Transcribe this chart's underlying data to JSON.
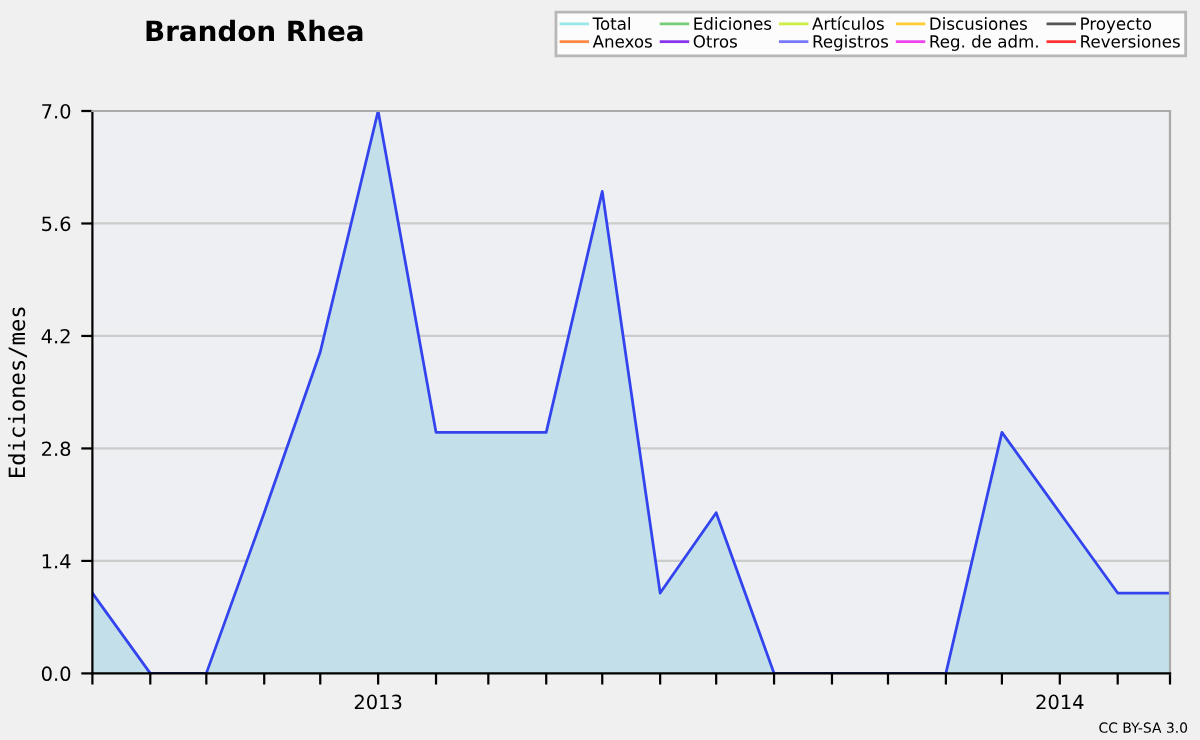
{
  "chart_data": {
    "type": "area",
    "title": "Brandon Rhea",
    "ylabel": "Ediciones/mes",
    "x": [
      "2012-08",
      "2012-09",
      "2012-10",
      "2012-11",
      "2012-12",
      "2013-01",
      "2013-02",
      "2013-03",
      "2013-04",
      "2013-05",
      "2013-06",
      "2013-07",
      "2013-08",
      "2013-09",
      "2013-10",
      "2013-11",
      "2013-12",
      "2014-01",
      "2014-02",
      "2014-03"
    ],
    "series": [
      {
        "color": "#3344ee",
        "values": [
          1,
          0,
          0,
          2,
          4,
          7,
          3,
          3,
          3,
          6,
          1,
          2,
          0,
          0,
          0,
          0,
          3,
          2,
          1,
          1
        ]
      },
      {
        "name": "Total",
        "color": "#99e6e6",
        "values": [
          null,
          null,
          null,
          null,
          null,
          null,
          null,
          null,
          null,
          null,
          null,
          null,
          null,
          null,
          null,
          null,
          null,
          null,
          null,
          null
        ]
      },
      {
        "name": "Ediciones",
        "color": "#77cc77",
        "values": [
          null,
          null,
          null,
          null,
          null,
          null,
          null,
          null,
          null,
          null,
          null,
          null,
          null,
          null,
          null,
          null,
          null,
          null,
          null,
          null
        ]
      },
      {
        "name": "Artículos",
        "color": "#ccee44",
        "values": [
          null,
          null,
          null,
          null,
          null,
          null,
          null,
          null,
          null,
          null,
          null,
          null,
          null,
          null,
          null,
          null,
          null,
          null,
          null,
          null
        ]
      },
      {
        "name": "Discusiones",
        "color": "#ffcc33",
        "values": [
          null,
          null,
          null,
          null,
          null,
          null,
          null,
          null,
          null,
          null,
          null,
          null,
          null,
          null,
          null,
          null,
          null,
          null,
          null,
          null
        ]
      },
      {
        "name": "Proyecto",
        "color": "#555555",
        "values": [
          null,
          null,
          null,
          null,
          null,
          null,
          null,
          null,
          null,
          null,
          null,
          null,
          null,
          null,
          null,
          null,
          null,
          null,
          null,
          null
        ]
      },
      {
        "name": "Anexos",
        "color": "#ff8844",
        "values": [
          null,
          null,
          null,
          null,
          null,
          null,
          null,
          null,
          null,
          null,
          null,
          null,
          null,
          null,
          null,
          null,
          null,
          null,
          null,
          null
        ]
      },
      {
        "name": "Otros",
        "color": "#8833ee",
        "values": [
          null,
          null,
          null,
          null,
          null,
          null,
          null,
          null,
          null,
          null,
          null,
          null,
          null,
          null,
          null,
          null,
          null,
          null,
          null,
          null
        ]
      },
      {
        "name": "Registros",
        "color": "#7777ff",
        "values": [
          null,
          null,
          null,
          null,
          null,
          null,
          null,
          null,
          null,
          null,
          null,
          null,
          null,
          null,
          null,
          null,
          null,
          null,
          null,
          null
        ]
      },
      {
        "name": "Reg. de adm.",
        "color": "#ee44ee",
        "values": [
          null,
          null,
          null,
          null,
          null,
          null,
          null,
          null,
          null,
          null,
          null,
          null,
          null,
          null,
          null,
          null,
          null,
          null,
          null,
          null
        ]
      },
      {
        "name": "Reversiones",
        "color": "#ff3333",
        "values": [
          null,
          null,
          null,
          null,
          null,
          null,
          null,
          null,
          null,
          null,
          null,
          null,
          null,
          null,
          null,
          null,
          null,
          null,
          null,
          null
        ]
      }
    ],
    "xlim": [
      "2012-08",
      "2014-03"
    ],
    "xticks": [
      {
        "value": "2012-08",
        "label": null
      },
      {
        "value": "2012-09",
        "label": null
      },
      {
        "value": "2012-10",
        "label": null
      },
      {
        "value": "2012-11",
        "label": null
      },
      {
        "value": "2012-12",
        "label": null
      },
      {
        "value": "2013-01",
        "label": "2013"
      },
      {
        "value": "2013-02",
        "label": null
      },
      {
        "value": "2013-03",
        "label": null
      },
      {
        "value": "2013-04",
        "label": null
      },
      {
        "value": "2013-05",
        "label": null
      },
      {
        "value": "2013-06",
        "label": null
      },
      {
        "value": "2013-07",
        "label": null
      },
      {
        "value": "2013-08",
        "label": null
      },
      {
        "value": "2013-09",
        "label": null
      },
      {
        "value": "2013-10",
        "label": null
      },
      {
        "value": "2013-11",
        "label": null
      },
      {
        "value": "2013-12",
        "label": null
      },
      {
        "value": "2014-01",
        "label": "2014"
      },
      {
        "value": "2014-02",
        "label": null
      },
      {
        "value": "2014-03",
        "label": null
      }
    ],
    "ylim": [
      0,
      7
    ],
    "yticks": [
      {
        "value": 0,
        "label": "0.0"
      },
      1.4,
      2.8,
      4.2,
      5.6,
      {
        "value": 7,
        "label": "7.0"
      }
    ],
    "grid": "y",
    "legend": "top right",
    "line_style": "solid",
    "annotations": [
      "CC BY-SA 3.0"
    ]
  }
}
